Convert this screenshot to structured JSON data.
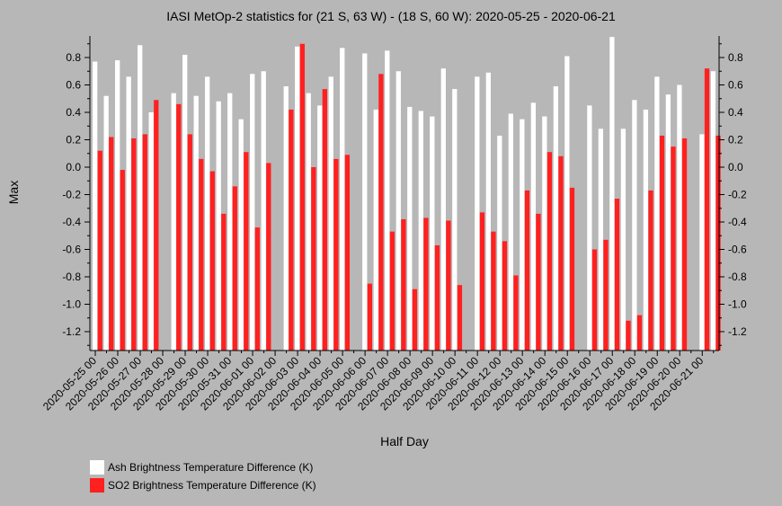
{
  "chart_data": {
    "type": "bar",
    "title": "IASI MetOp-2 statistics for (21 S, 63 W) - (18 S, 60 W): 2020-05-25 - 2020-06-21",
    "xlabel": "Half Day",
    "ylabel": "Max",
    "ylim": [
      -1.34,
      0.95
    ],
    "yticks": [
      "-1.2",
      "-1.0",
      "-0.8",
      "-0.6",
      "-0.4",
      "-0.2",
      "0.0",
      "0.2",
      "0.4",
      "0.6",
      "0.8"
    ],
    "ytick_values": [
      -1.2,
      -1.0,
      -0.8,
      -0.6,
      -0.4,
      -0.2,
      0.0,
      0.2,
      0.4,
      0.6,
      0.8
    ],
    "x_tick_labels": [
      "2020-05-25 00",
      "2020-05-26 00",
      "2020-05-27 00",
      "2020-05-28 00",
      "2020-05-29 00",
      "2020-05-30 00",
      "2020-05-31 00",
      "2020-06-01 00",
      "2020-06-02 00",
      "2020-06-03 00",
      "2020-06-04 00",
      "2020-06-05 00",
      "2020-06-06 00",
      "2020-06-07 00",
      "2020-06-08 00",
      "2020-06-09 00",
      "2020-06-10 00",
      "2020-06-11 00",
      "2020-06-12 00",
      "2020-06-13 00",
      "2020-06-14 00",
      "2020-06-15 00",
      "2020-06-16 00",
      "2020-06-17 00",
      "2020-06-18 00",
      "2020-06-19 00",
      "2020-06-20 00",
      "2020-06-21 00"
    ],
    "grid": false,
    "legend_placement": "bottom-left",
    "series": [
      {
        "name": "Ash Brightness Temperature Difference (K)",
        "color": "#ffffff",
        "values": [
          0.77,
          0.52,
          0.78,
          0.66,
          0.89,
          0.4,
          null,
          0.54,
          0.82,
          0.52,
          0.66,
          0.48,
          0.54,
          0.35,
          0.68,
          0.7,
          null,
          0.59,
          0.88,
          0.54,
          0.45,
          0.66,
          0.87,
          null,
          0.83,
          0.42,
          0.85,
          0.7,
          0.44,
          0.41,
          0.37,
          0.72,
          0.57,
          null,
          0.66,
          0.69,
          0.23,
          0.39,
          0.35,
          0.47,
          0.37,
          0.59,
          0.81,
          null,
          0.45,
          0.28,
          0.95,
          0.28,
          0.49,
          0.42,
          0.66,
          0.53,
          0.6,
          null,
          0.24,
          0.7
        ]
      },
      {
        "name": "SO2 Brightness Temperature Difference (K)",
        "color": "#ff2020",
        "values": [
          0.12,
          0.22,
          -0.02,
          0.21,
          0.24,
          0.49,
          null,
          0.46,
          0.24,
          0.06,
          -0.03,
          -0.34,
          -0.14,
          0.11,
          -0.44,
          0.03,
          null,
          0.42,
          0.9,
          0.0,
          0.57,
          0.06,
          0.09,
          null,
          -0.85,
          0.68,
          -0.47,
          -0.38,
          -0.89,
          -0.37,
          -0.57,
          -0.39,
          -0.86,
          null,
          -0.33,
          -0.47,
          -0.54,
          -0.79,
          -0.17,
          -0.34,
          0.11,
          0.08,
          -0.15,
          null,
          -0.6,
          -0.53,
          -0.23,
          -1.12,
          -1.08,
          -0.17,
          0.23,
          0.15,
          0.21,
          null,
          0.72,
          0.23
        ]
      }
    ]
  }
}
